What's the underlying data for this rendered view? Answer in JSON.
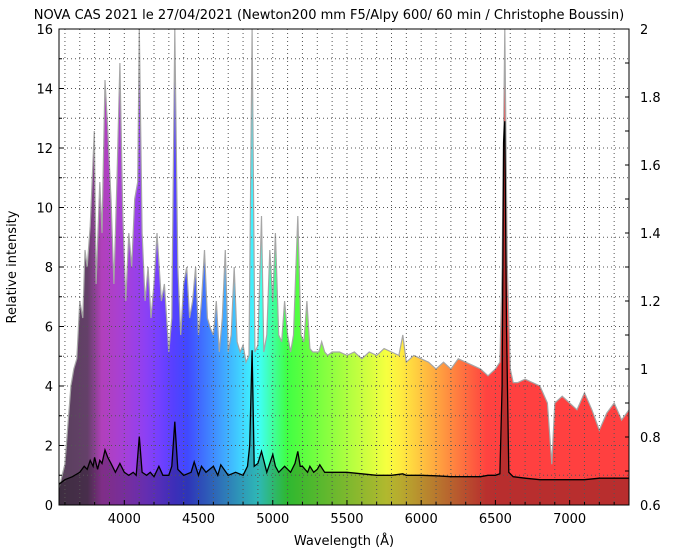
{
  "chart_data": {
    "type": "line",
    "title": "NOVA CAS 2021 le 27/04/2021 (Newton200 mm F5/Alpy 600/ 60 min / Christophe Boussin)",
    "xlabel": "Wavelength (Å)",
    "ylabel": "Relative intensity",
    "xlim": [
      3560,
      7400
    ],
    "ylim": [
      0,
      16
    ],
    "y2lim": [
      0.6,
      2.0
    ],
    "x_ticks": [
      4000,
      4500,
      5000,
      5500,
      6000,
      6500,
      7000
    ],
    "y_ticks": [
      0,
      2,
      4,
      6,
      8,
      10,
      12,
      14,
      16
    ],
    "y2_ticks": [
      0.6,
      0.8,
      1.0,
      1.2,
      1.4,
      1.6,
      1.8,
      2.0
    ],
    "grid": true,
    "colors": {
      "main_line": "#000000",
      "envelope_line": "#a6a6a6",
      "grid": "#555555"
    },
    "series": [
      {
        "axis": "left",
        "role": "spectrum",
        "x": [
          3560,
          3600,
          3650,
          3700,
          3730,
          3750,
          3770,
          3790,
          3800,
          3820,
          3835,
          3850,
          3870,
          3889,
          3910,
          3940,
          3970,
          4000,
          4030,
          4060,
          4080,
          4101,
          4120,
          4150,
          4175,
          4200,
          4233,
          4260,
          4300,
          4320,
          4340,
          4360,
          4400,
          4450,
          4471,
          4500,
          4520,
          4550,
          4600,
          4630,
          4650,
          4700,
          4750,
          4800,
          4830,
          4845,
          4861,
          4875,
          4900,
          4924,
          4960,
          4980,
          5000,
          5018,
          5040,
          5080,
          5120,
          5150,
          5169,
          5185,
          5200,
          5235,
          5250,
          5276,
          5300,
          5317,
          5350,
          5400,
          5500,
          5600,
          5700,
          5800,
          5876,
          5900,
          6000,
          6100,
          6200,
          6300,
          6400,
          6450,
          6500,
          6530,
          6545,
          6555,
          6563,
          6575,
          6590,
          6620,
          6700,
          6800,
          6900,
          7000,
          7100,
          7200,
          7300,
          7400
        ],
        "y": [
          0.7,
          0.85,
          0.95,
          1.1,
          1.3,
          1.2,
          1.5,
          1.3,
          1.6,
          1.2,
          1.5,
          1.4,
          1.85,
          1.6,
          1.4,
          1.1,
          1.4,
          1.1,
          1.0,
          1.1,
          1.0,
          2.3,
          1.1,
          1.0,
          1.1,
          0.95,
          1.3,
          1.0,
          1.0,
          1.3,
          2.8,
          1.2,
          1.0,
          1.1,
          1.45,
          1.0,
          1.3,
          1.1,
          1.3,
          1.0,
          1.35,
          1.0,
          1.1,
          1.0,
          1.3,
          2.0,
          5.2,
          1.3,
          1.4,
          1.8,
          1.1,
          1.4,
          1.7,
          1.3,
          1.1,
          1.3,
          1.1,
          1.4,
          1.8,
          1.3,
          1.3,
          1.1,
          1.3,
          1.1,
          1.2,
          1.35,
          1.1,
          1.1,
          1.1,
          1.05,
          1.0,
          1.0,
          1.05,
          1.0,
          1.0,
          0.98,
          0.95,
          0.95,
          0.95,
          1.0,
          1.0,
          1.05,
          4.0,
          12.2,
          12.9,
          6.0,
          1.1,
          0.95,
          0.9,
          0.85,
          0.85,
          0.85,
          0.85,
          0.9,
          0.9,
          0.9
        ]
      },
      {
        "axis": "right",
        "role": "continuum",
        "x": [
          3560,
          3600,
          3640,
          3660,
          3680,
          3700,
          3720,
          3735,
          3750,
          3770,
          3798,
          3810,
          3835,
          3850,
          3870,
          3889,
          3910,
          3930,
          3950,
          3970,
          3990,
          4010,
          4030,
          4050,
          4070,
          4090,
          4101,
          4120,
          4140,
          4160,
          4180,
          4200,
          4220,
          4250,
          4270,
          4300,
          4320,
          4340,
          4360,
          4380,
          4400,
          4420,
          4440,
          4460,
          4480,
          4500,
          4520,
          4540,
          4560,
          4580,
          4600,
          4620,
          4640,
          4660,
          4680,
          4700,
          4720,
          4740,
          4760,
          4780,
          4800,
          4820,
          4840,
          4861,
          4880,
          4900,
          4924,
          4940,
          4960,
          4980,
          5000,
          5018,
          5040,
          5060,
          5080,
          5100,
          5120,
          5140,
          5169,
          5190,
          5210,
          5230,
          5250,
          5270,
          5290,
          5310,
          5330,
          5350,
          5370,
          5400,
          5450,
          5500,
          5550,
          5600,
          5650,
          5700,
          5750,
          5800,
          5850,
          5876,
          5900,
          5950,
          6000,
          6050,
          6100,
          6150,
          6200,
          6250,
          6300,
          6350,
          6400,
          6450,
          6500,
          6530,
          6545,
          6563,
          6580,
          6600,
          6620,
          6650,
          6700,
          6750,
          6800,
          6850,
          6880,
          6900,
          6950,
          7000,
          7050,
          7100,
          7150,
          7200,
          7250,
          7300,
          7350,
          7400
        ],
        "y": [
          0.65,
          0.72,
          0.95,
          1.0,
          1.03,
          1.2,
          1.15,
          1.35,
          1.3,
          1.42,
          1.7,
          1.25,
          1.55,
          1.4,
          1.85,
          1.7,
          1.5,
          1.25,
          1.55,
          1.9,
          1.45,
          1.2,
          1.4,
          1.3,
          1.5,
          1.55,
          2.0,
          1.4,
          1.2,
          1.3,
          1.15,
          1.25,
          1.4,
          1.2,
          1.25,
          1.05,
          1.15,
          2.0,
          1.3,
          1.1,
          1.25,
          1.3,
          1.15,
          1.2,
          1.3,
          1.1,
          1.2,
          1.35,
          1.15,
          1.12,
          1.1,
          1.2,
          1.05,
          1.15,
          1.35,
          1.05,
          1.1,
          1.3,
          1.08,
          1.05,
          1.07,
          1.02,
          1.04,
          2.0,
          1.05,
          1.07,
          1.45,
          1.05,
          1.1,
          1.35,
          1.2,
          1.4,
          1.1,
          1.08,
          1.2,
          1.1,
          1.05,
          1.1,
          1.45,
          1.1,
          1.08,
          1.2,
          1.06,
          1.05,
          1.05,
          1.05,
          1.08,
          1.05,
          1.04,
          1.05,
          1.05,
          1.04,
          1.05,
          1.03,
          1.05,
          1.04,
          1.06,
          1.05,
          1.04,
          1.1,
          1.02,
          1.04,
          1.03,
          1.02,
          1.0,
          1.02,
          1.0,
          1.03,
          1.02,
          1.01,
          1.0,
          0.98,
          1.0,
          1.02,
          1.3,
          2.0,
          1.3,
          1.0,
          0.96,
          0.96,
          0.97,
          0.96,
          0.95,
          0.9,
          0.72,
          0.9,
          0.92,
          0.9,
          0.88,
          0.93,
          0.88,
          0.82,
          0.87,
          0.9,
          0.85,
          0.88
        ]
      }
    ]
  }
}
